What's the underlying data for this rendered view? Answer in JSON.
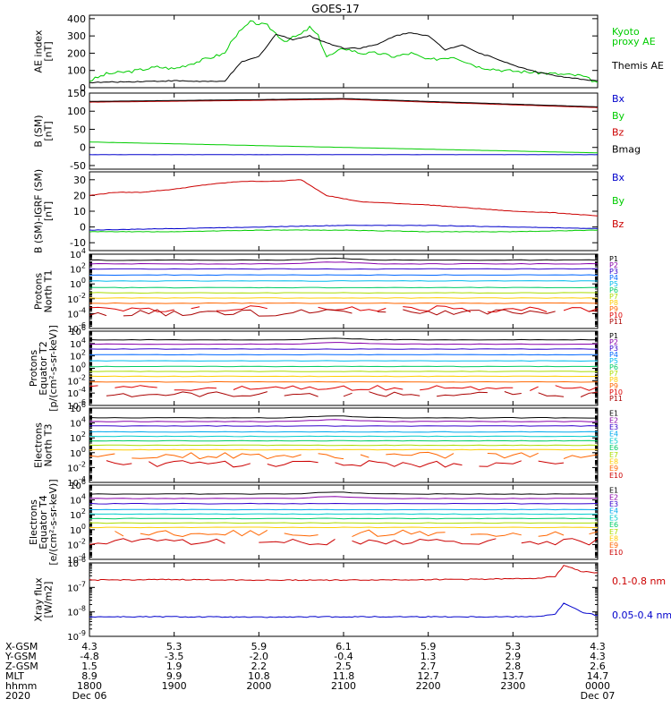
{
  "title": "GOES-17",
  "colors": {
    "axis": "#000000",
    "black": "#000000",
    "green": "#00cc00",
    "red": "#cc0000",
    "blue": "#0000cc"
  },
  "chart_data": [
    {
      "type": "line",
      "panel": "ae",
      "ylabel": [
        "AE index",
        "[nT]"
      ],
      "ylim": [
        0,
        420
      ],
      "yticks": [
        {
          "v": 0,
          "label": "0"
        },
        {
          "v": 100,
          "label": "100"
        },
        {
          "v": 200,
          "label": "200"
        },
        {
          "v": 300,
          "label": "300"
        },
        {
          "v": 400,
          "label": "400"
        }
      ],
      "yscale": "linear",
      "series": [
        {
          "name": "Kyoto proxy AE",
          "label_lines": [
            "Kyoto",
            "proxy AE"
          ],
          "color": "#00cc00",
          "x": [
            0,
            0.2,
            0.5,
            0.8,
            1.0,
            1.2,
            1.4,
            1.6,
            1.7,
            1.9,
            2.1,
            2.3,
            2.5,
            2.6,
            2.7,
            2.8,
            2.9,
            3.0,
            3.2,
            3.4,
            3.6,
            3.8,
            4.0,
            4.3,
            4.6,
            4.9,
            5.2,
            5.5,
            5.8,
            6.0
          ],
          "y": [
            40,
            80,
            95,
            120,
            110,
            140,
            170,
            200,
            290,
            380,
            360,
            270,
            310,
            350,
            300,
            180,
            200,
            230,
            200,
            200,
            180,
            200,
            160,
            180,
            120,
            100,
            90,
            80,
            70,
            30
          ]
        },
        {
          "name": "Themis AE",
          "label_lines": [
            "Themis AE"
          ],
          "color": "#000000",
          "x": [
            0,
            0.5,
            1.0,
            1.5,
            1.6,
            1.8,
            2.0,
            2.2,
            2.4,
            2.6,
            2.8,
            3.0,
            3.2,
            3.4,
            3.6,
            3.8,
            4.0,
            4.2,
            4.4,
            4.6,
            4.8,
            5.0,
            5.3,
            5.6,
            6.0
          ],
          "y": [
            30,
            35,
            40,
            35,
            40,
            150,
            180,
            310,
            280,
            300,
            260,
            230,
            230,
            250,
            300,
            320,
            300,
            220,
            250,
            200,
            170,
            130,
            90,
            60,
            40
          ]
        }
      ]
    },
    {
      "type": "line",
      "panel": "bsm",
      "ylabel": [
        "B (SM)",
        "[nT]"
      ],
      "ylim": [
        -60,
        150
      ],
      "yticks": [
        {
          "v": -50,
          "label": "-50"
        },
        {
          "v": 0,
          "label": "0"
        },
        {
          "v": 50,
          "label": "50"
        },
        {
          "v": 100,
          "label": "100"
        },
        {
          "v": 150,
          "label": "150"
        }
      ],
      "yscale": "linear",
      "series": [
        {
          "name": "Bx",
          "label_lines": [
            "Bx"
          ],
          "color": "#0000cc",
          "x": [
            0,
            6
          ],
          "y": [
            -20,
            -20
          ]
        },
        {
          "name": "By",
          "label_lines": [
            "By"
          ],
          "color": "#00cc00",
          "x": [
            0,
            2,
            4,
            6
          ],
          "y": [
            15,
            5,
            -5,
            -15
          ]
        },
        {
          "name": "Bz",
          "label_lines": [
            "Bz"
          ],
          "color": "#cc0000",
          "x": [
            0,
            2,
            3,
            4,
            6
          ],
          "y": [
            125,
            130,
            133,
            125,
            110
          ]
        },
        {
          "name": "Bmag",
          "label_lines": [
            "Bmag"
          ],
          "color": "#000000",
          "x": [
            0,
            2,
            3,
            4,
            6
          ],
          "y": [
            127,
            132,
            135,
            127,
            112
          ]
        }
      ]
    },
    {
      "type": "line",
      "panel": "bigrf",
      "ylabel": [
        "B (SM)-IGRF (SM)",
        "[nT]"
      ],
      "ylim": [
        -15,
        35
      ],
      "yticks": [
        {
          "v": -10,
          "label": "-10"
        },
        {
          "v": 0,
          "label": "0"
        },
        {
          "v": 10,
          "label": "10"
        },
        {
          "v": 20,
          "label": "20"
        },
        {
          "v": 30,
          "label": "30"
        }
      ],
      "yscale": "linear",
      "series": [
        {
          "name": "Bx",
          "label_lines": [
            "Bx"
          ],
          "color": "#0000cc",
          "x": [
            0,
            1,
            2,
            3,
            4,
            5,
            6
          ],
          "y": [
            -2,
            -1,
            0,
            1,
            1,
            0,
            -1
          ]
        },
        {
          "name": "By",
          "label_lines": [
            "By"
          ],
          "color": "#00cc00",
          "x": [
            0,
            1,
            2,
            3,
            4,
            5,
            6
          ],
          "y": [
            -3,
            -3,
            -2,
            -2,
            -3,
            -3,
            -2
          ]
        },
        {
          "name": "Bz",
          "label_lines": [
            "Bz"
          ],
          "color": "#cc0000",
          "x": [
            0,
            0.3,
            0.6,
            1.0,
            1.4,
            1.8,
            2.2,
            2.5,
            2.8,
            3.2,
            3.6,
            4.0,
            4.5,
            5.0,
            5.5,
            6.0
          ],
          "y": [
            20,
            22,
            22,
            24,
            27,
            29,
            29,
            30,
            20,
            16,
            15,
            14,
            12,
            10,
            9,
            7
          ]
        }
      ]
    },
    {
      "type": "line",
      "panel": "pn",
      "ylabel": [
        "Protons",
        "North T1"
      ],
      "ylim": [
        -6,
        4
      ],
      "yscale": "log10",
      "yticks": [
        {
          "v": -6,
          "exp": "-6"
        },
        {
          "v": -4,
          "exp": "-4"
        },
        {
          "v": -2,
          "exp": "-2"
        },
        {
          "v": 0,
          "exp": "0"
        },
        {
          "v": 2,
          "exp": "2"
        },
        {
          "v": 4,
          "exp": "4"
        }
      ],
      "channels": [
        {
          "name": "P1",
          "color": "#000000",
          "level": 3.2
        },
        {
          "name": "P2",
          "color": "#8800aa",
          "level": 2.7
        },
        {
          "name": "P3",
          "color": "#3300cc",
          "level": 2.0
        },
        {
          "name": "P4",
          "color": "#0066ff",
          "level": 1.2
        },
        {
          "name": "P5",
          "color": "#00bbee",
          "level": 0.4
        },
        {
          "name": "P6",
          "color": "#00cc66",
          "level": -0.5
        },
        {
          "name": "P7",
          "color": "#aadd00",
          "level": -1.2
        },
        {
          "name": "P8",
          "color": "#ffcc00",
          "level": -1.9
        },
        {
          "name": "P9",
          "color": "#ff6600",
          "level": -2.6
        },
        {
          "name": "P10",
          "color": "#dd0000",
          "level": -3.4
        },
        {
          "name": "P11",
          "color": "#aa0000",
          "level": -3.9
        }
      ]
    },
    {
      "type": "line",
      "panel": "pe",
      "ylabel": [
        "Protons",
        "Equator T2",
        "[p/(cm²-s-sr-keV)]"
      ],
      "ylim": [
        -6,
        6
      ],
      "yscale": "log10",
      "yticks": [
        {
          "v": -6,
          "exp": "-6"
        },
        {
          "v": -4,
          "exp": "-4"
        },
        {
          "v": -2,
          "exp": "-2"
        },
        {
          "v": 0,
          "exp": "0"
        },
        {
          "v": 2,
          "exp": "2"
        },
        {
          "v": 4,
          "exp": "4"
        },
        {
          "v": 6,
          "exp": "6"
        }
      ],
      "channels": [
        {
          "name": "P1",
          "color": "#000000",
          "level": 4.6
        },
        {
          "name": "P2",
          "color": "#8800aa",
          "level": 3.9
        },
        {
          "name": "P3",
          "color": "#3300cc",
          "level": 3.1
        },
        {
          "name": "P4",
          "color": "#0066ff",
          "level": 2.2
        },
        {
          "name": "P5",
          "color": "#00bbee",
          "level": 1.2
        },
        {
          "name": "P6",
          "color": "#00cc66",
          "level": 0.3
        },
        {
          "name": "P7",
          "color": "#aadd00",
          "level": -0.5
        },
        {
          "name": "P8",
          "color": "#ffcc00",
          "level": -1.3
        },
        {
          "name": "P9",
          "color": "#ff6600",
          "level": -2.2
        },
        {
          "name": "P10",
          "color": "#dd0000",
          "level": -3.2
        },
        {
          "name": "P11",
          "color": "#aa0000",
          "level": -4.2
        }
      ]
    },
    {
      "type": "line",
      "panel": "en",
      "ylabel": [
        "Electrons",
        "North T3"
      ],
      "ylim": [
        -4,
        6
      ],
      "yscale": "log10",
      "yticks": [
        {
          "v": -4,
          "exp": "-4"
        },
        {
          "v": -2,
          "exp": "-2"
        },
        {
          "v": 0,
          "exp": "0"
        },
        {
          "v": 2,
          "exp": "2"
        },
        {
          "v": 4,
          "exp": "4"
        },
        {
          "v": 6,
          "exp": "6"
        }
      ],
      "channels": [
        {
          "name": "E1",
          "color": "#000000",
          "level": 4.7
        },
        {
          "name": "E2",
          "color": "#8800aa",
          "level": 4.2
        },
        {
          "name": "E3",
          "color": "#3300cc",
          "level": 3.6
        },
        {
          "name": "E4",
          "color": "#00aaee",
          "level": 2.8
        },
        {
          "name": "E5",
          "color": "#00cccc",
          "level": 2.2
        },
        {
          "name": "E6",
          "color": "#00cc66",
          "level": 1.6
        },
        {
          "name": "E7",
          "color": "#aadd00",
          "level": 1.0
        },
        {
          "name": "E8",
          "color": "#ffcc00",
          "level": 0.4
        },
        {
          "name": "E9",
          "color": "#ff6600",
          "level": -0.4
        },
        {
          "name": "E10",
          "color": "#cc0000",
          "level": -1.5
        }
      ]
    },
    {
      "type": "line",
      "panel": "ee",
      "ylabel": [
        "Electrons",
        "Equator T4",
        "[e/(cm²-s-sr-keV)]"
      ],
      "ylim": [
        -4,
        6
      ],
      "yscale": "log10",
      "yticks": [
        {
          "v": -4,
          "exp": "-4"
        },
        {
          "v": -2,
          "exp": "-2"
        },
        {
          "v": 0,
          "exp": "0"
        },
        {
          "v": 2,
          "exp": "2"
        },
        {
          "v": 4,
          "exp": "4"
        },
        {
          "v": 6,
          "exp": "6"
        }
      ],
      "channels": [
        {
          "name": "E1",
          "color": "#000000",
          "level": 4.8
        },
        {
          "name": "E2",
          "color": "#8800aa",
          "level": 4.2
        },
        {
          "name": "E3",
          "color": "#3300cc",
          "level": 3.5
        },
        {
          "name": "E4",
          "color": "#00aaee",
          "level": 2.7
        },
        {
          "name": "E5",
          "color": "#00cccc",
          "level": 2.1
        },
        {
          "name": "E6",
          "color": "#00cc66",
          "level": 1.5
        },
        {
          "name": "E7",
          "color": "#aadd00",
          "level": 0.9
        },
        {
          "name": "E8",
          "color": "#ffcc00",
          "level": 0.3
        },
        {
          "name": "E9",
          "color": "#ff6600",
          "level": -0.5
        },
        {
          "name": "E10",
          "color": "#cc0000",
          "level": -1.6
        }
      ]
    },
    {
      "type": "line",
      "panel": "xray",
      "ylabel": [
        "Xray flux",
        "[W/m2]"
      ],
      "ylim": [
        -9,
        -6
      ],
      "yscale": "log10",
      "yticks": [
        {
          "v": -9,
          "exp": "-9"
        },
        {
          "v": -8,
          "exp": "-8"
        },
        {
          "v": -7,
          "exp": "-7"
        },
        {
          "v": -6,
          "exp": "-6"
        }
      ],
      "series": [
        {
          "name": "0.1-0.8 nm",
          "label_lines": [
            "0.1-0.8 nm"
          ],
          "color": "#cc0000",
          "x": [
            0,
            1,
            2,
            3,
            4,
            5,
            5.3,
            5.5,
            5.6,
            5.7,
            5.8,
            6.0
          ],
          "y": [
            -6.7,
            -6.68,
            -6.7,
            -6.7,
            -6.68,
            -6.65,
            -6.62,
            -6.55,
            -6.1,
            -6.2,
            -6.35,
            -6.4
          ]
        },
        {
          "name": "0.05-0.4 nm",
          "label_lines": [
            "0.05-0.4 nm"
          ],
          "color": "#0000cc",
          "x": [
            0,
            1,
            2,
            3,
            4,
            5,
            5.3,
            5.5,
            5.6,
            5.7,
            5.8,
            6.0
          ],
          "y": [
            -8.2,
            -8.2,
            -8.22,
            -8.2,
            -8.2,
            -8.2,
            -8.18,
            -8.1,
            -7.65,
            -7.8,
            -8.0,
            -8.15
          ]
        }
      ]
    }
  ],
  "xaxis": {
    "rows": [
      "X-GSM",
      "Y-GSM",
      "Z-GSM",
      "MLT",
      "hhmm",
      "2020"
    ],
    "ticks": [
      {
        "vals": [
          "4.3",
          "-4.8",
          "1.5",
          "8.9",
          "1800",
          "Dec 06"
        ]
      },
      {
        "vals": [
          "5.3",
          "-3.5",
          "1.9",
          "9.9",
          "1900",
          ""
        ]
      },
      {
        "vals": [
          "5.9",
          "-2.0",
          "2.2",
          "10.8",
          "2000",
          ""
        ]
      },
      {
        "vals": [
          "6.1",
          "-0.4",
          "2.5",
          "11.8",
          "2100",
          ""
        ]
      },
      {
        "vals": [
          "5.9",
          "1.3",
          "2.7",
          "12.7",
          "2200",
          ""
        ]
      },
      {
        "vals": [
          "5.3",
          "2.9",
          "2.8",
          "13.7",
          "2300",
          ""
        ]
      },
      {
        "vals": [
          "4.3",
          "4.3",
          "2.6",
          "14.7",
          "0000",
          "Dec 07"
        ]
      }
    ]
  }
}
